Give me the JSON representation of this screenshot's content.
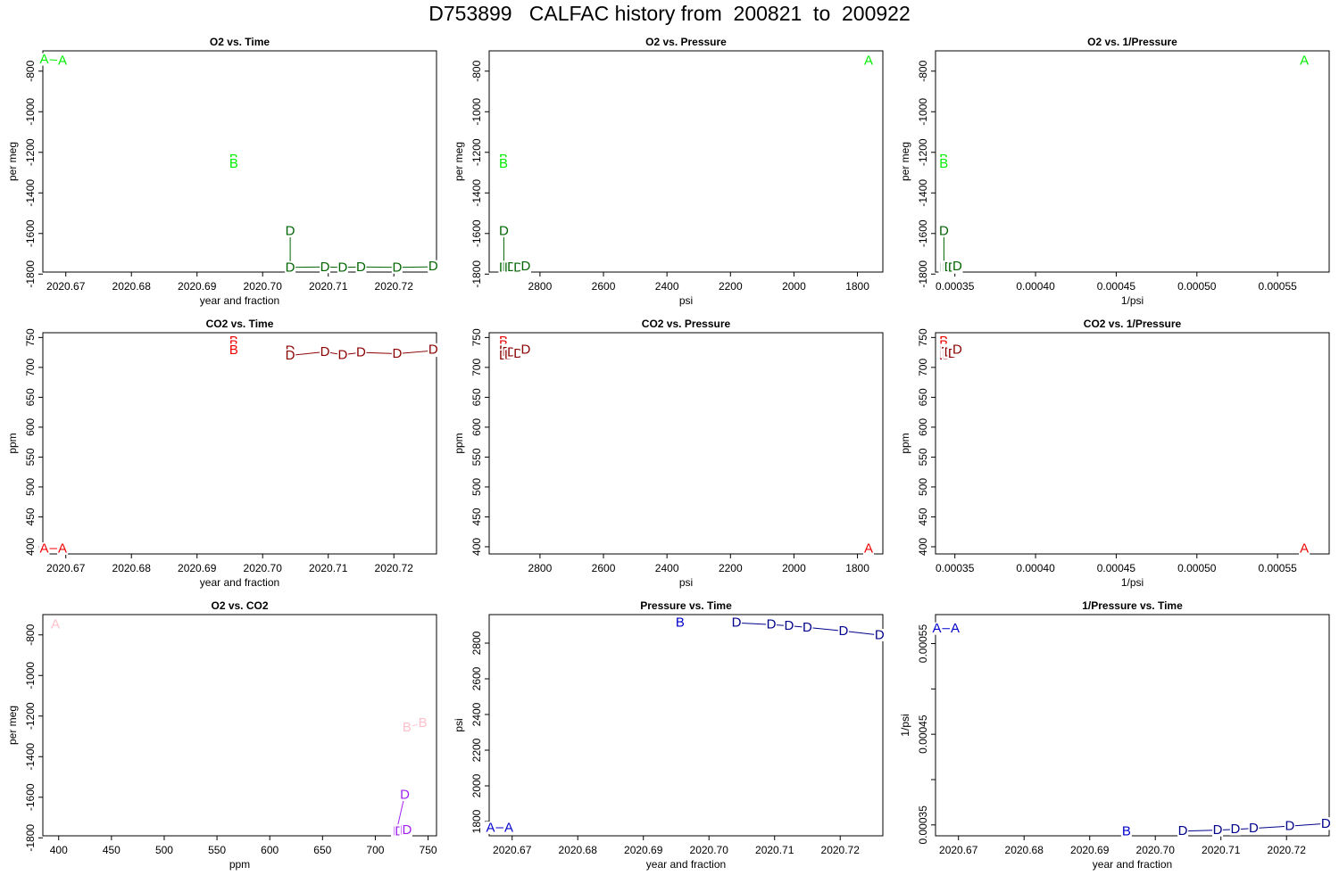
{
  "title": "D753899   CALFAC history from  200821  to  200922",
  "chart_data": [
    {
      "type": "scatter",
      "title": "O2 vs. Time",
      "xlabel": "year and fraction",
      "ylabel": "per meg",
      "xlim": [
        2020.6665,
        2020.7265
      ],
      "ylim": [
        -1790,
        -700
      ],
      "xticks": [
        2020.67,
        2020.68,
        2020.69,
        2020.7,
        2020.71,
        2020.72
      ],
      "xtick_labels": [
        "2020.67",
        "2020.68",
        "2020.69",
        "2020.70",
        "2020.71",
        "2020.72"
      ],
      "yticks": [
        -1800,
        -1600,
        -1400,
        -1200,
        -1000,
        -800
      ],
      "ytick_labels": [
        "-1800",
        "-1600",
        "-1400",
        "-1200",
        "-1000",
        "-800"
      ],
      "series": [
        {
          "name": "A",
          "color": "#00ee00",
          "connected": true,
          "points": [
            [
              2020.6667,
              -742
            ],
            [
              2020.6695,
              -748
            ]
          ]
        },
        {
          "name": "B",
          "color": "#00ee00",
          "connected": false,
          "points": [
            [
              2020.6956,
              -1235
            ],
            [
              2020.6956,
              -1255
            ]
          ]
        },
        {
          "name": "D",
          "color": "#006400",
          "connected": true,
          "points": [
            [
              2020.7042,
              -1588
            ],
            [
              2020.7042,
              -1767
            ],
            [
              2020.7095,
              -1765
            ],
            [
              2020.7122,
              -1767
            ],
            [
              2020.715,
              -1765
            ],
            [
              2020.7205,
              -1767
            ],
            [
              2020.726,
              -1764
            ],
            [
              2020.726,
              -1762
            ]
          ]
        }
      ]
    },
    {
      "type": "scatter",
      "title": "O2 vs. Pressure",
      "xlabel": "psi",
      "ylabel": "per meg",
      "xlim": [
        2960,
        1720
      ],
      "ylim": [
        -1790,
        -700
      ],
      "xticks": [
        2800,
        2600,
        2400,
        2200,
        2000,
        1800
      ],
      "xtick_labels": [
        "2800",
        "2600",
        "2400",
        "2200",
        "2000",
        "1800"
      ],
      "yticks": [
        -1800,
        -1600,
        -1400,
        -1200,
        -1000,
        -800
      ],
      "ytick_labels": [
        "-1800",
        "-1600",
        "-1400",
        "-1200",
        "-1000",
        "-800"
      ],
      "series": [
        {
          "name": "A",
          "color": "#00ee00",
          "connected": true,
          "points": [
            [
              1765,
              -742
            ],
            [
              1765,
              -748
            ]
          ]
        },
        {
          "name": "B",
          "color": "#00ee00",
          "connected": false,
          "points": [
            [
              2915,
              -1235
            ],
            [
              2915,
              -1255
            ]
          ]
        },
        {
          "name": "D",
          "color": "#006400",
          "connected": true,
          "points": [
            [
              2914,
              -1588
            ],
            [
              2914,
              -1767
            ],
            [
              2904,
              -1765
            ],
            [
              2897,
              -1767
            ],
            [
              2888,
              -1765
            ],
            [
              2868,
              -1767
            ],
            [
              2845,
              -1764
            ],
            [
              2845,
              -1762
            ]
          ]
        }
      ]
    },
    {
      "type": "scatter",
      "title": "O2 vs. 1/Pressure",
      "xlabel": "1/psi",
      "ylabel": "per meg",
      "xlim": [
        0.000338,
        0.000582
      ],
      "ylim": [
        -1790,
        -700
      ],
      "xticks": [
        0.00035,
        0.0004,
        0.00045,
        0.0005,
        0.00055
      ],
      "xtick_labels": [
        "0.00035",
        "0.00040",
        "0.00045",
        "0.00050",
        "0.00055"
      ],
      "yticks": [
        -1800,
        -1600,
        -1400,
        -1200,
        -1000,
        -800
      ],
      "ytick_labels": [
        "-1800",
        "-1600",
        "-1400",
        "-1200",
        "-1000",
        "-800"
      ],
      "series": [
        {
          "name": "A",
          "color": "#00ee00",
          "connected": true,
          "points": [
            [
              0.0005666,
              -742
            ],
            [
              0.0005666,
              -748
            ]
          ]
        },
        {
          "name": "B",
          "color": "#00ee00",
          "connected": false,
          "points": [
            [
              0.0003431,
              -1235
            ],
            [
              0.0003431,
              -1255
            ]
          ]
        },
        {
          "name": "D",
          "color": "#006400",
          "connected": true,
          "points": [
            [
              0.0003432,
              -1588
            ],
            [
              0.0003432,
              -1767
            ],
            [
              0.0003443,
              -1765
            ],
            [
              0.0003452,
              -1767
            ],
            [
              0.0003463,
              -1765
            ],
            [
              0.0003487,
              -1767
            ],
            [
              0.0003515,
              -1764
            ],
            [
              0.0003515,
              -1762
            ]
          ]
        }
      ]
    },
    {
      "type": "scatter",
      "title": "CO2 vs. Time",
      "xlabel": "year and fraction",
      "ylabel": "ppm",
      "xlim": [
        2020.6665,
        2020.7265
      ],
      "ylim": [
        388,
        758
      ],
      "xticks": [
        2020.67,
        2020.68,
        2020.69,
        2020.7,
        2020.71,
        2020.72
      ],
      "xtick_labels": [
        "2020.67",
        "2020.68",
        "2020.69",
        "2020.70",
        "2020.71",
        "2020.72"
      ],
      "yticks": [
        400,
        450,
        500,
        550,
        600,
        650,
        700,
        750
      ],
      "ytick_labels": [
        "400",
        "450",
        "500",
        "550",
        "600",
        "650",
        "700",
        "750"
      ],
      "series": [
        {
          "name": "A",
          "color": "#ee0000",
          "connected": true,
          "points": [
            [
              2020.6667,
              397
            ],
            [
              2020.6695,
              397
            ]
          ]
        },
        {
          "name": "B",
          "color": "#ee0000",
          "connected": false,
          "points": [
            [
              2020.6956,
              744
            ],
            [
              2020.6956,
              737
            ],
            [
              2020.6956,
              729
            ]
          ]
        },
        {
          "name": "D",
          "color": "#8b0000",
          "connected": true,
          "points": [
            [
              2020.7042,
              728
            ],
            [
              2020.7042,
              720
            ],
            [
              2020.7095,
              726
            ],
            [
              2020.7122,
              721
            ],
            [
              2020.715,
              725
            ],
            [
              2020.7205,
              723
            ],
            [
              2020.726,
              728
            ],
            [
              2020.726,
              730
            ]
          ]
        }
      ]
    },
    {
      "type": "scatter",
      "title": "CO2 vs. Pressure",
      "xlabel": "psi",
      "ylabel": "ppm",
      "xlim": [
        2960,
        1720
      ],
      "ylim": [
        388,
        758
      ],
      "xticks": [
        2800,
        2600,
        2400,
        2200,
        2000,
        1800
      ],
      "xtick_labels": [
        "2800",
        "2600",
        "2400",
        "2200",
        "2000",
        "1800"
      ],
      "yticks": [
        400,
        450,
        500,
        550,
        600,
        650,
        700,
        750
      ],
      "ytick_labels": [
        "400",
        "450",
        "500",
        "550",
        "600",
        "650",
        "700",
        "750"
      ],
      "series": [
        {
          "name": "A",
          "color": "#ee0000",
          "connected": true,
          "points": [
            [
              1765,
              397
            ],
            [
              1765,
              397
            ]
          ]
        },
        {
          "name": "B",
          "color": "#ee0000",
          "connected": false,
          "points": [
            [
              2915,
              744
            ],
            [
              2915,
              737
            ],
            [
              2915,
              729
            ]
          ]
        },
        {
          "name": "D",
          "color": "#8b0000",
          "connected": true,
          "points": [
            [
              2914,
              728
            ],
            [
              2914,
              720
            ],
            [
              2904,
              726
            ],
            [
              2897,
              721
            ],
            [
              2888,
              725
            ],
            [
              2868,
              723
            ],
            [
              2845,
              728
            ],
            [
              2845,
              730
            ]
          ]
        }
      ]
    },
    {
      "type": "scatter",
      "title": "CO2 vs. 1/Pressure",
      "xlabel": "1/psi",
      "ylabel": "ppm",
      "xlim": [
        0.000338,
        0.000582
      ],
      "ylim": [
        388,
        758
      ],
      "xticks": [
        0.00035,
        0.0004,
        0.00045,
        0.0005,
        0.00055
      ],
      "xtick_labels": [
        "0.00035",
        "0.00040",
        "0.00045",
        "0.00050",
        "0.00055"
      ],
      "yticks": [
        400,
        450,
        500,
        550,
        600,
        650,
        700,
        750
      ],
      "ytick_labels": [
        "400",
        "450",
        "500",
        "550",
        "600",
        "650",
        "700",
        "750"
      ],
      "series": [
        {
          "name": "A",
          "color": "#ee0000",
          "connected": true,
          "points": [
            [
              0.0005666,
              397
            ],
            [
              0.0005666,
              397
            ]
          ]
        },
        {
          "name": "B",
          "color": "#ee0000",
          "connected": false,
          "points": [
            [
              0.0003431,
              744
            ],
            [
              0.0003431,
              737
            ],
            [
              0.0003431,
              729
            ]
          ]
        },
        {
          "name": "D",
          "color": "#8b0000",
          "connected": true,
          "points": [
            [
              0.0003432,
              728
            ],
            [
              0.0003432,
              720
            ],
            [
              0.0003443,
              726
            ],
            [
              0.0003452,
              721
            ],
            [
              0.0003463,
              725
            ],
            [
              0.0003487,
              723
            ],
            [
              0.0003515,
              728
            ],
            [
              0.0003515,
              730
            ]
          ]
        }
      ]
    },
    {
      "type": "scatter",
      "title": "O2 vs. CO2",
      "xlabel": "ppm",
      "ylabel": "per meg",
      "xlim": [
        385,
        758
      ],
      "ylim": [
        -1790,
        -700
      ],
      "xticks": [
        400,
        450,
        500,
        550,
        600,
        650,
        700,
        750
      ],
      "xtick_labels": [
        "400",
        "450",
        "500",
        "550",
        "600",
        "650",
        "700",
        "750"
      ],
      "yticks": [
        -1800,
        -1600,
        -1400,
        -1200,
        -1000,
        -800
      ],
      "ytick_labels": [
        "-1800",
        "-1600",
        "-1400",
        "-1200",
        "-1000",
        "-800"
      ],
      "series": [
        {
          "name": "A",
          "color": "#ffc0cb",
          "connected": true,
          "points": [
            [
              397,
              -742
            ],
            [
              397,
              -748
            ]
          ]
        },
        {
          "name": "B",
          "color": "#ffc0cb",
          "connected": true,
          "points": [
            [
              730,
              -1255
            ],
            [
              745,
              -1235
            ]
          ]
        },
        {
          "name": "D",
          "color": "#a020f0",
          "connected": true,
          "points": [
            [
              728,
              -1588
            ],
            [
              720,
              -1767
            ],
            [
              726,
              -1765
            ],
            [
              721,
              -1767
            ],
            [
              725,
              -1765
            ],
            [
              723,
              -1767
            ],
            [
              728,
              -1764
            ],
            [
              730,
              -1762
            ]
          ]
        }
      ]
    },
    {
      "type": "scatter",
      "title": "Pressure vs. Time",
      "xlabel": "year and fraction",
      "ylabel": "psi",
      "xlim": [
        2020.6665,
        2020.7265
      ],
      "ylim": [
        1720,
        2960
      ],
      "xticks": [
        2020.67,
        2020.68,
        2020.69,
        2020.7,
        2020.71,
        2020.72
      ],
      "xtick_labels": [
        "2020.67",
        "2020.68",
        "2020.69",
        "2020.70",
        "2020.71",
        "2020.72"
      ],
      "yticks": [
        1800,
        2000,
        2200,
        2400,
        2600,
        2800
      ],
      "ytick_labels": [
        "1800",
        "2000",
        "2200",
        "2400",
        "2600",
        "2800"
      ],
      "series": [
        {
          "name": "A",
          "color": "#0000cd",
          "connected": true,
          "points": [
            [
              2020.6667,
              1765
            ],
            [
              2020.6695,
              1765
            ]
          ]
        },
        {
          "name": "B",
          "color": "#0000cd",
          "connected": false,
          "points": [
            [
              2020.6956,
              2915
            ]
          ]
        },
        {
          "name": "D",
          "color": "#00008b",
          "connected": true,
          "points": [
            [
              2020.7042,
              2914
            ],
            [
              2020.7095,
              2904
            ],
            [
              2020.7122,
              2897
            ],
            [
              2020.715,
              2888
            ],
            [
              2020.7205,
              2868
            ],
            [
              2020.726,
              2845
            ],
            [
              2020.726,
              2845
            ]
          ]
        }
      ]
    },
    {
      "type": "scatter",
      "title": "1/Pressure vs. Time",
      "xlabel": "year and fraction",
      "ylabel": "1/psi",
      "xlim": [
        2020.6665,
        2020.7265
      ],
      "ylim": [
        0.000338,
        0.000582
      ],
      "xticks": [
        2020.67,
        2020.68,
        2020.69,
        2020.7,
        2020.71,
        2020.72
      ],
      "xtick_labels": [
        "2020.67",
        "2020.68",
        "2020.69",
        "2020.70",
        "2020.71",
        "2020.72"
      ],
      "yticks": [
        0.00035,
        0.0004,
        0.00045,
        0.0005,
        0.00055
      ],
      "ytick_labels": [
        "0.00035",
        "",
        "0.00045",
        "",
        "0.00055"
      ],
      "series": [
        {
          "name": "A",
          "color": "#0000cd",
          "connected": true,
          "points": [
            [
              2020.6667,
              0.0005666
            ],
            [
              2020.6695,
              0.0005666
            ]
          ]
        },
        {
          "name": "B",
          "color": "#0000cd",
          "connected": false,
          "points": [
            [
              2020.6956,
              0.0003431
            ]
          ]
        },
        {
          "name": "D",
          "color": "#00008b",
          "connected": true,
          "points": [
            [
              2020.7042,
              0.0003432
            ],
            [
              2020.7095,
              0.0003443
            ],
            [
              2020.7122,
              0.0003452
            ],
            [
              2020.715,
              0.0003463
            ],
            [
              2020.7205,
              0.0003487
            ],
            [
              2020.726,
              0.0003515
            ],
            [
              2020.726,
              0.0003515
            ]
          ]
        }
      ]
    }
  ]
}
